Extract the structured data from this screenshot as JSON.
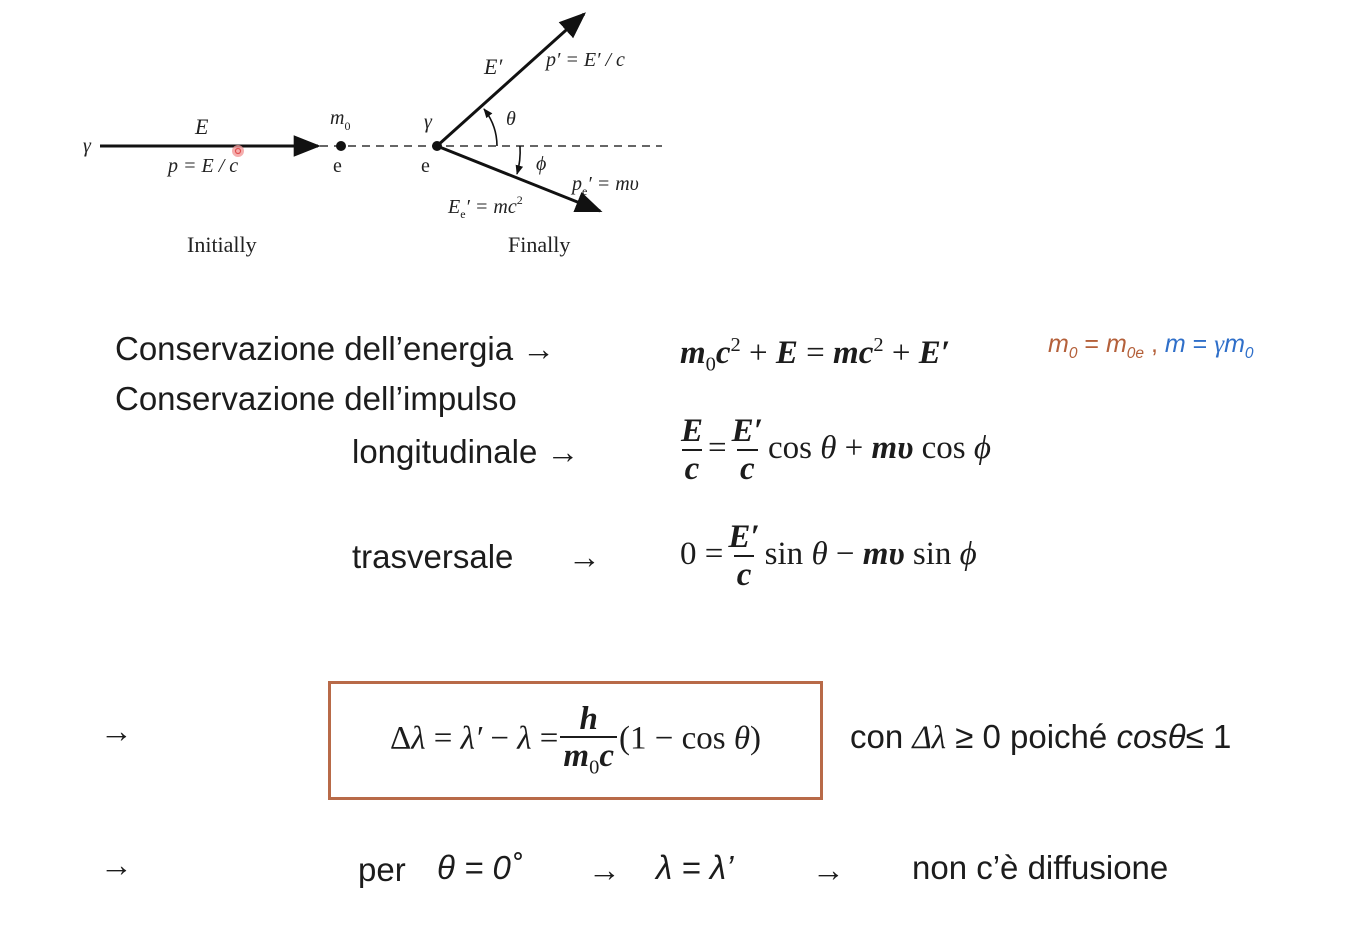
{
  "diagram": {
    "incoming_gamma": "γ",
    "incoming_energy": "E",
    "incoming_momentum": "p = E / c",
    "electron_mass": "m",
    "electron_mass_sub": "0",
    "electron_initial": "e",
    "electron_final": "e",
    "gamma_at_vertex": "γ",
    "scattered_energy": "E′",
    "scattered_momentum": "p′ = E′ / c",
    "theta": "θ",
    "phi": "ϕ",
    "electron_momentum_p": "p",
    "electron_momentum_rest": "′ = mυ",
    "electron_energy_E": "E",
    "electron_energy_rest": "′ = mc",
    "electron_energy_sup": "2",
    "electron_sub": "e",
    "caption_initially": "Initially",
    "caption_finally": "Finally"
  },
  "equations": {
    "energy_label": "Conservazione dell’energia →",
    "momentum_label": "Conservazione dell’impulso",
    "longitudinal_label": "longitudinale →",
    "transverse_label": "trasversale",
    "transverse_arrow": "→",
    "note_brown": "m0 = m0e ,",
    "note_blue": "m = γm0"
  },
  "result": {
    "arrow1": "→",
    "condition_prefix": "con ",
    "condition_delta": "Δλ",
    "condition_mid": " ≥ 0 poiché ",
    "condition_cos": "cosθ",
    "condition_end": "≤ 1",
    "arrow2": "→",
    "per": "per",
    "theta_zero": "θ = 0˚",
    "arrow3": "→",
    "lambda_equal": "λ = λ’",
    "arrow4": "→",
    "no_scatter": "non c’è diffusione"
  },
  "colors": {
    "brown": "#b4603a",
    "blue": "#2f6fc9",
    "box": "#b86a48"
  }
}
